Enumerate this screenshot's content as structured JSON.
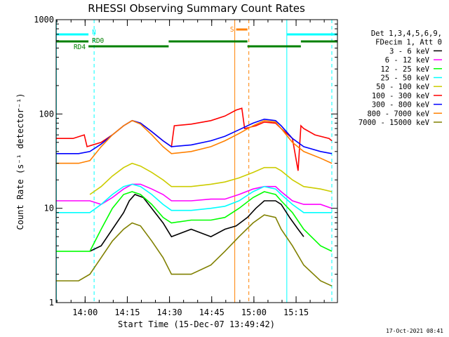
{
  "chart_data": {
    "type": "line",
    "title": "RHESSI Observing Summary Count Rates",
    "xlabel": "Start Time (15-Dec-07 13:49:42)",
    "ylabel": "Count Rate (s⁻¹ detector⁻¹)",
    "y_scale": "log",
    "ylim": [
      1,
      1000
    ],
    "xlim_minutes_after_start": [
      0,
      100
    ],
    "y_ticks": [
      "1",
      "10",
      "100",
      "1000"
    ],
    "x_ticks": [
      {
        "label": "14:00",
        "minute": 10.3
      },
      {
        "label": "14:15",
        "minute": 25.3
      },
      {
        "label": "14:30",
        "minute": 40.3
      },
      {
        "label": "14:45",
        "minute": 55.3
      },
      {
        "label": "15:00",
        "minute": 70.3
      },
      {
        "label": "15:15",
        "minute": 85.3
      }
    ],
    "legend_header": [
      "Det 1,3,4,5,6,9,",
      "FDecim 1, Att 0"
    ],
    "legend_position": "right",
    "timestamp": "17-Oct-2021 08:41",
    "series": [
      {
        "name": "3 - 6 keV",
        "color": "#000000",
        "x": [
          12,
          16,
          20,
          24,
          26,
          28,
          31,
          34,
          38,
          41,
          48,
          55,
          60,
          64,
          68,
          71,
          74,
          78,
          80,
          83,
          86,
          88
        ],
        "values": [
          3.5,
          4,
          6,
          9,
          12,
          14,
          13,
          10,
          7,
          5,
          6,
          5,
          6,
          6.5,
          8,
          10,
          12,
          12,
          11,
          8,
          6,
          5
        ]
      },
      {
        "name": "6 - 12 keV",
        "color": "#ff00ff",
        "x": [
          0,
          6,
          12,
          16,
          20,
          24,
          27,
          30,
          34,
          38,
          41,
          48,
          55,
          60,
          65,
          70,
          74,
          78,
          80,
          84,
          88,
          94,
          98
        ],
        "values": [
          12,
          12,
          12,
          11,
          13,
          16,
          18,
          18,
          16,
          14,
          12,
          12,
          12.5,
          12.5,
          14,
          16,
          17,
          17,
          15,
          12,
          11,
          11,
          10
        ]
      },
      {
        "name": "12 - 25 keV",
        "color": "#00ff00",
        "x": [
          0,
          8,
          12,
          16,
          20,
          24,
          27,
          30,
          34,
          38,
          41,
          48,
          55,
          60,
          65,
          70,
          74,
          78,
          80,
          84,
          88,
          94,
          98
        ],
        "values": [
          3.5,
          3.5,
          3.5,
          6,
          10,
          14,
          15,
          14,
          11,
          8,
          7,
          7.5,
          7.5,
          8,
          10,
          13,
          15,
          14,
          12,
          9,
          6,
          4,
          3.5
        ]
      },
      {
        "name": "25 - 50 keV",
        "color": "#00ffff",
        "x": [
          0,
          8,
          12,
          16,
          20,
          24,
          27,
          30,
          34,
          38,
          41,
          48,
          55,
          60,
          65,
          70,
          74,
          78,
          80,
          84,
          88,
          94,
          98
        ],
        "values": [
          9,
          9,
          9,
          11,
          14,
          17,
          18,
          17,
          14,
          11,
          9.5,
          9.5,
          10,
          10.5,
          12,
          15,
          17,
          16,
          14,
          11,
          9,
          9,
          9
        ]
      },
      {
        "name": "50 - 100 keV",
        "color": "#cccc00",
        "x": [
          12,
          16,
          20,
          24,
          27,
          30,
          34,
          38,
          41,
          48,
          55,
          60,
          65,
          70,
          74,
          78,
          80,
          84,
          88,
          94,
          98
        ],
        "values": [
          14,
          17,
          22,
          27,
          30,
          28,
          24,
          20,
          17,
          17,
          18,
          19,
          21,
          24,
          27,
          27,
          25,
          20,
          17,
          16,
          15
        ]
      },
      {
        "name": "100 - 300 keV",
        "color": "#ff0000",
        "x": [
          0,
          6,
          10,
          11,
          16,
          20,
          24,
          27,
          30,
          34,
          38,
          41,
          42,
          48,
          55,
          60,
          64,
          66,
          67,
          71,
          74,
          78,
          80,
          84,
          86,
          87,
          88,
          92,
          97,
          98
        ],
        "values": [
          55,
          55,
          60,
          45,
          50,
          60,
          75,
          85,
          80,
          65,
          52,
          45,
          75,
          78,
          85,
          95,
          110,
          115,
          70,
          75,
          82,
          80,
          70,
          55,
          25,
          75,
          70,
          60,
          55,
          52
        ]
      },
      {
        "name": "300 - 800 keV",
        "color": "#0000ff",
        "x": [
          0,
          8,
          12,
          16,
          20,
          24,
          27,
          30,
          34,
          38,
          41,
          48,
          55,
          60,
          65,
          70,
          74,
          78,
          80,
          84,
          88,
          94,
          98
        ],
        "values": [
          38,
          38,
          40,
          48,
          60,
          75,
          85,
          80,
          65,
          52,
          45,
          47,
          52,
          58,
          68,
          80,
          88,
          85,
          75,
          55,
          45,
          40,
          38
        ]
      },
      {
        "name": "800 - 7000 keV",
        "color": "#ff8000",
        "x": [
          0,
          8,
          12,
          16,
          20,
          24,
          27,
          30,
          34,
          38,
          41,
          48,
          55,
          60,
          65,
          70,
          74,
          78,
          80,
          84,
          88,
          94,
          98
        ],
        "values": [
          30,
          30,
          32,
          45,
          60,
          75,
          85,
          78,
          60,
          45,
          38,
          40,
          45,
          52,
          62,
          75,
          85,
          82,
          70,
          50,
          40,
          34,
          30
        ]
      },
      {
        "name": "7000 - 15000 keV",
        "color": "#808000",
        "x": [
          0,
          8,
          12,
          16,
          20,
          24,
          27,
          30,
          34,
          38,
          41,
          48,
          55,
          60,
          65,
          70,
          74,
          78,
          80,
          84,
          88,
          94,
          98
        ],
        "values": [
          1.7,
          1.7,
          2,
          3,
          4.5,
          6,
          7,
          6.5,
          4.5,
          3,
          2,
          2,
          2.5,
          3.5,
          5,
          7,
          8.5,
          8,
          6,
          4,
          2.5,
          1.7,
          1.5
        ]
      }
    ],
    "annotations": {
      "vertical_markers": [
        {
          "minute": 0.1,
          "color": "#00ffff",
          "style": "solid"
        },
        {
          "minute": 13.5,
          "color": "#00ffff",
          "style": "dashed"
        },
        {
          "minute": 63.5,
          "color": "#ff8000",
          "style": "solid"
        },
        {
          "minute": 68.5,
          "color": "#ff8000",
          "style": "dashed"
        },
        {
          "minute": 82.0,
          "color": "#00ffff",
          "style": "solid"
        },
        {
          "minute": 98.0,
          "color": "#00ffff",
          "style": "dashed"
        }
      ],
      "bars": [
        {
          "label": "N",
          "color": "#00ffff",
          "row": 0,
          "segments": [
            [
              0,
              11.5
            ],
            [
              82,
              100
            ]
          ]
        },
        {
          "label": "S",
          "color": "#ff8000",
          "row": -1,
          "segments": [
            [
              64,
              68
            ]
          ]
        },
        {
          "label": "RD0",
          "color": "#008000",
          "row": 1,
          "segments": [
            [
              0,
              11.5
            ],
            [
              40,
              68
            ],
            [
              87,
              100
            ]
          ]
        },
        {
          "label": "RD4",
          "color": "#008000",
          "row": 2,
          "segments": [
            [
              11.5,
              40
            ],
            [
              68,
              87
            ]
          ]
        }
      ]
    }
  }
}
